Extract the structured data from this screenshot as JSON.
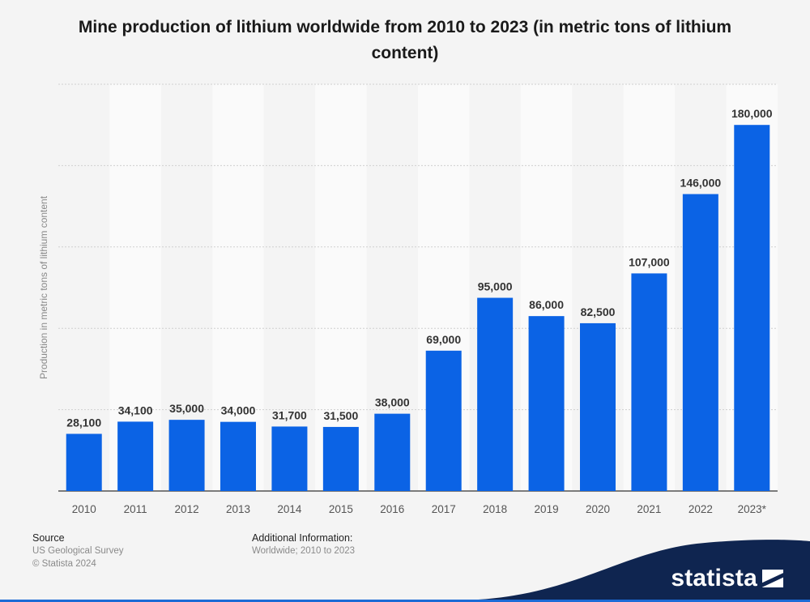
{
  "title": "Mine production of lithium worldwide from 2010 to 2023 (in metric tons of lithium content)",
  "chart_data": {
    "type": "bar",
    "categories": [
      "2010",
      "2011",
      "2012",
      "2013",
      "2014",
      "2015",
      "2016",
      "2017",
      "2018",
      "2019",
      "2020",
      "2021",
      "2022",
      "2023*"
    ],
    "values": [
      28100,
      34100,
      35000,
      34000,
      31700,
      31500,
      38000,
      69000,
      95000,
      86000,
      82500,
      107000,
      146000,
      180000
    ],
    "value_labels": [
      "28,100",
      "34,100",
      "35,000",
      "34,000",
      "31,700",
      "31,500",
      "38,000",
      "69,000",
      "95,000",
      "86,000",
      "82,500",
      "107,000",
      "146,000",
      "180,000"
    ],
    "ylabel": "Production in metric tons of lithium content",
    "xlabel": "",
    "ylim": [
      0,
      200000
    ],
    "y_gridlines": [
      0,
      40000,
      80000,
      120000,
      160000,
      200000
    ],
    "grid": true,
    "bar_color": "#0b63e5"
  },
  "footer": {
    "source_heading": "Source",
    "source_line1": "US Geological Survey",
    "source_line2": "© Statista 2024",
    "info_heading": "Additional Information:",
    "info_line1": "Worldwide; 2010 to 2023"
  },
  "brand": {
    "name": "statista",
    "color": "#0f2550"
  }
}
